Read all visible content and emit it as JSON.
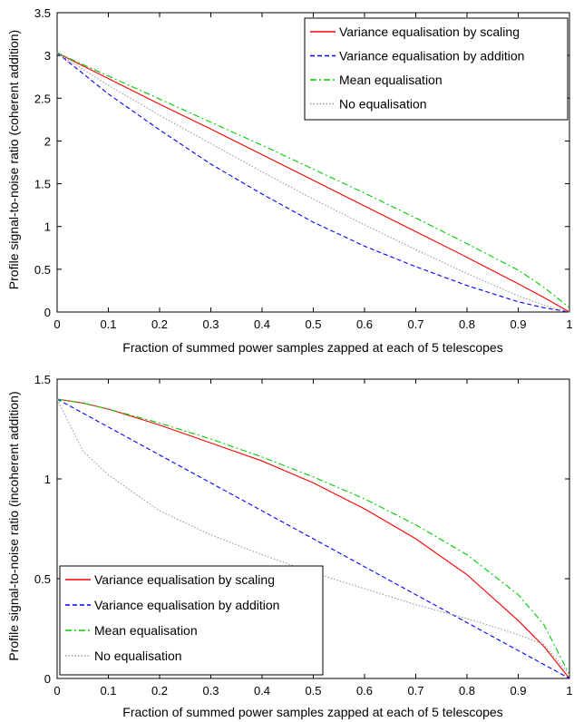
{
  "chart_data": [
    {
      "type": "line",
      "xlabel": "Fraction of summed power samples zapped at each of 5 telescopes",
      "ylabel": "Profile signal-to-noise ratio (coherent addition)",
      "xlim": [
        0,
        1
      ],
      "ylim": [
        0,
        3.5
      ],
      "xticks": [
        "0",
        "0.1",
        "0.2",
        "0.3",
        "0.4",
        "0.5",
        "0.6",
        "0.7",
        "0.8",
        "0.9",
        "1"
      ],
      "yticks": [
        "0",
        "0.5",
        "1",
        "1.5",
        "2",
        "2.5",
        "3",
        "3.5"
      ],
      "legend_position": "top-right",
      "grid": false,
      "x": [
        0,
        0.1,
        0.2,
        0.3,
        0.4,
        0.5,
        0.6,
        0.7,
        0.8,
        0.9,
        0.95,
        1.0
      ],
      "series": [
        {
          "name": "Variance equalisation by scaling",
          "color": "#ff0000",
          "dash": "solid",
          "values": [
            3.03,
            2.73,
            2.43,
            2.14,
            1.84,
            1.54,
            1.24,
            0.94,
            0.64,
            0.33,
            0.17,
            0.0
          ]
        },
        {
          "name": "Variance equalisation by addition",
          "color": "#0000ff",
          "dash": "dashed",
          "values": [
            3.03,
            2.55,
            2.13,
            1.73,
            1.38,
            1.05,
            0.77,
            0.53,
            0.31,
            0.12,
            0.05,
            0.0
          ]
        },
        {
          "name": "Mean equalisation",
          "color": "#00cc00",
          "dash": "dashdot",
          "values": [
            3.03,
            2.76,
            2.49,
            2.22,
            1.95,
            1.67,
            1.39,
            1.1,
            0.8,
            0.49,
            0.29,
            0.05
          ]
        },
        {
          "name": "No equalisation",
          "color": "#999999",
          "dash": "dotted",
          "values": [
            3.03,
            2.65,
            2.3,
            1.97,
            1.64,
            1.32,
            1.02,
            0.73,
            0.45,
            0.19,
            0.08,
            0.0
          ]
        }
      ]
    },
    {
      "type": "line",
      "xlabel": "Fraction of summed power samples zapped at each of 5 telescopes",
      "ylabel": "Profile signal-to-noise ratio (incoherent addition)",
      "xlim": [
        0,
        1
      ],
      "ylim": [
        0,
        1.5
      ],
      "xticks": [
        "0",
        "0.1",
        "0.2",
        "0.3",
        "0.4",
        "0.5",
        "0.6",
        "0.7",
        "0.8",
        "0.9",
        "1"
      ],
      "yticks": [
        "0",
        "0.5",
        "1",
        "1.5"
      ],
      "legend_position": "bottom-left",
      "grid": false,
      "x": [
        0,
        0.05,
        0.1,
        0.2,
        0.3,
        0.4,
        0.5,
        0.6,
        0.7,
        0.8,
        0.9,
        0.95,
        1.0
      ],
      "series": [
        {
          "name": "Variance equalisation by scaling",
          "color": "#ff0000",
          "dash": "solid",
          "values": [
            1.4,
            1.38,
            1.35,
            1.27,
            1.18,
            1.09,
            0.98,
            0.85,
            0.7,
            0.52,
            0.29,
            0.16,
            0.0
          ]
        },
        {
          "name": "Variance equalisation by addition",
          "color": "#0000ff",
          "dash": "dashed",
          "values": [
            1.4,
            1.33,
            1.26,
            1.12,
            0.98,
            0.84,
            0.7,
            0.56,
            0.42,
            0.28,
            0.14,
            0.07,
            0.0
          ]
        },
        {
          "name": "Mean equalisation",
          "color": "#00cc00",
          "dash": "dashdot",
          "values": [
            1.4,
            1.38,
            1.35,
            1.28,
            1.2,
            1.11,
            1.01,
            0.9,
            0.77,
            0.62,
            0.42,
            0.27,
            0.02
          ]
        },
        {
          "name": "No equalisation",
          "color": "#999999",
          "dash": "dotted",
          "values": [
            1.4,
            1.14,
            1.02,
            0.84,
            0.72,
            0.62,
            0.53,
            0.45,
            0.37,
            0.3,
            0.22,
            0.17,
            0.02
          ]
        }
      ]
    }
  ]
}
